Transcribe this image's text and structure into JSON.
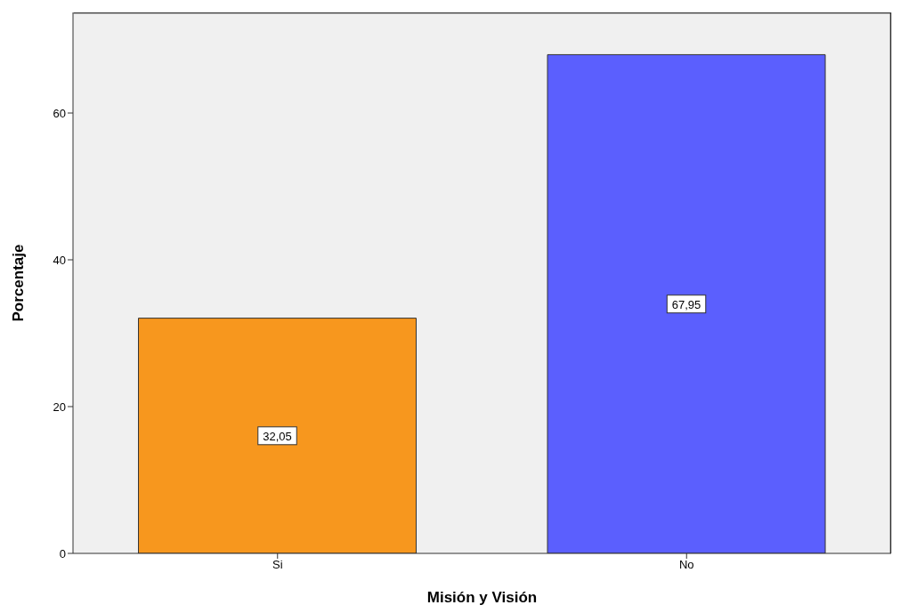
{
  "chart_data": {
    "type": "bar",
    "xlabel": "Misión y Visión",
    "ylabel": "Porcentaje",
    "categories": [
      "Si",
      "No"
    ],
    "values": [
      32.05,
      67.95
    ],
    "colors": [
      "#f7971e",
      "#5b5ffe"
    ],
    "value_labels": [
      "32,05",
      "67,95"
    ],
    "ylim": [
      0,
      73.7
    ],
    "yticks": [
      0,
      20,
      40,
      60
    ],
    "grid": false
  }
}
